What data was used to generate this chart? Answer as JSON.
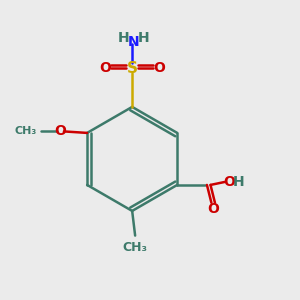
{
  "background_color": "#ebebeb",
  "atom_colors": {
    "C": "#3d7a6a",
    "H": "#3d7a6a",
    "N": "#1a1aff",
    "O": "#cc0000",
    "S": "#ccaa00"
  },
  "figsize": [
    3.0,
    3.0
  ],
  "dpi": 100
}
